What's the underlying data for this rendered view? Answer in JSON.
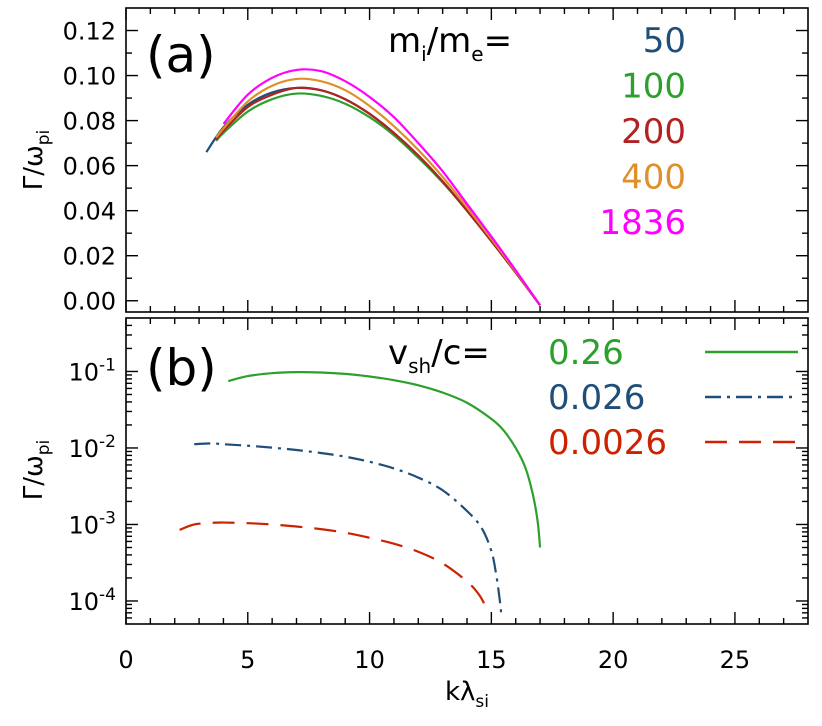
{
  "chart_data": [
    {
      "panel": "a",
      "type": "line",
      "panel_label": "(a)",
      "xlabel": "kλ",
      "xlabel_sub": "si",
      "ylabel": "Γ/ω",
      "ylabel_sub": "pi",
      "xlim": [
        0,
        28
      ],
      "ylim": [
        -0.005,
        0.13
      ],
      "y_scale": "linear",
      "x_ticks": [
        0,
        5,
        10,
        15,
        20,
        25
      ],
      "y_ticks": [
        "0.00",
        "0.02",
        "0.04",
        "0.06",
        "0.08",
        "0.10",
        "0.12"
      ],
      "legend": {
        "title": "m",
        "title_sub1": "i",
        "title_mid": "/m",
        "title_sub2": "e",
        "title_end": "=",
        "placement": "top-right"
      },
      "series": [
        {
          "name": "50",
          "color": "#1f4e79",
          "x": [
            3.3,
            4,
            5,
            6,
            7,
            8,
            9,
            10,
            11,
            12,
            13,
            14,
            15,
            16,
            17
          ],
          "y": [
            0.066,
            0.077,
            0.087,
            0.0925,
            0.0945,
            0.0935,
            0.0895,
            0.083,
            0.0745,
            0.0645,
            0.053,
            0.04,
            0.0265,
            0.0125,
            -0.002
          ]
        },
        {
          "name": "100",
          "color": "#2ca02c",
          "x": [
            3.7,
            4,
            5,
            6,
            7,
            8,
            9,
            10,
            11,
            12,
            13,
            14,
            15,
            16,
            17
          ],
          "y": [
            0.071,
            0.0745,
            0.084,
            0.0895,
            0.092,
            0.091,
            0.0875,
            0.0815,
            0.0735,
            0.0635,
            0.0525,
            0.04,
            0.0265,
            0.0125,
            -0.002
          ]
        },
        {
          "name": "200",
          "color": "#b22222",
          "x": [
            3.7,
            4,
            5,
            6,
            7,
            8,
            9,
            10,
            11,
            12,
            13,
            14,
            15,
            16,
            17
          ],
          "y": [
            0.0715,
            0.0755,
            0.086,
            0.0915,
            0.0945,
            0.0935,
            0.0895,
            0.083,
            0.0745,
            0.0645,
            0.053,
            0.04,
            0.0265,
            0.0125,
            -0.002
          ]
        },
        {
          "name": "400",
          "color": "#e0902a",
          "x": [
            3.7,
            4,
            5,
            6,
            7,
            8,
            9,
            10,
            11,
            12,
            13,
            14,
            15,
            16,
            17
          ],
          "y": [
            0.0725,
            0.0765,
            0.0885,
            0.0955,
            0.0985,
            0.0975,
            0.0935,
            0.0865,
            0.0775,
            0.067,
            0.055,
            0.0415,
            0.0275,
            0.013,
            -0.002
          ]
        },
        {
          "name": "1836",
          "color": "#ff00ff",
          "x": [
            4,
            5,
            6,
            7,
            8,
            9,
            10,
            11,
            12,
            13,
            14,
            15,
            16,
            17
          ],
          "y": [
            0.0785,
            0.0915,
            0.099,
            0.1025,
            0.102,
            0.0975,
            0.0905,
            0.0815,
            0.07,
            0.0575,
            0.043,
            0.0285,
            0.0135,
            -0.002
          ]
        }
      ]
    },
    {
      "panel": "b",
      "type": "line",
      "panel_label": "(b)",
      "xlabel": "kλ",
      "xlabel_sub": "si",
      "ylabel": "Γ/ω",
      "ylabel_sub": "pi",
      "xlim": [
        0,
        28
      ],
      "ylim": [
        5e-05,
        0.5
      ],
      "y_scale": "log",
      "x_ticks": [
        0,
        5,
        10,
        15,
        20,
        25
      ],
      "y_ticks": [
        0.1,
        0.01,
        0.001,
        0.0001
      ],
      "y_tick_exponents": [
        "-1",
        "-2",
        "-3",
        "-4"
      ],
      "legend": {
        "title": "v",
        "title_sub": "sh",
        "title_end": "/c=",
        "placement": "top-right"
      },
      "series": [
        {
          "name": "0.26",
          "color": "#2ca02c",
          "dash": "solid",
          "x": [
            4.2,
            5,
            6,
            7,
            8,
            9,
            10,
            11,
            12,
            13,
            14,
            15,
            15.5,
            16,
            16.4,
            16.7,
            16.9,
            17.0
          ],
          "y": [
            0.075,
            0.087,
            0.095,
            0.098,
            0.097,
            0.093,
            0.086,
            0.077,
            0.066,
            0.053,
            0.039,
            0.024,
            0.017,
            0.01,
            0.0055,
            0.0025,
            0.0011,
            0.0005
          ]
        },
        {
          "name": "0.026",
          "color": "#1f4e79",
          "dash": "dashdot",
          "x": [
            2.8,
            3.5,
            4,
            5,
            6,
            7,
            8,
            9,
            10,
            11,
            12,
            13,
            14,
            14.6,
            15.0,
            15.2,
            15.35,
            15.42
          ],
          "y": [
            0.0112,
            0.0115,
            0.0112,
            0.0107,
            0.0101,
            0.0094,
            0.0086,
            0.0077,
            0.0066,
            0.0054,
            0.0041,
            0.0028,
            0.0015,
            0.0009,
            0.00045,
            0.00022,
            0.0001,
            6e-05
          ]
        },
        {
          "name": "0.0026",
          "color": "#cc2200",
          "dash": "dashed",
          "x": [
            2.2,
            2.8,
            3.5,
            4,
            5,
            6,
            7,
            8,
            9,
            10,
            11,
            12,
            13,
            14,
            14.5,
            14.8
          ],
          "y": [
            0.00085,
            0.001,
            0.00105,
            0.00106,
            0.00104,
            0.001,
            0.00094,
            0.00087,
            0.00078,
            0.00067,
            0.00056,
            0.00044,
            0.00031,
            0.00018,
            0.00012,
            8e-05
          ]
        }
      ]
    }
  ]
}
